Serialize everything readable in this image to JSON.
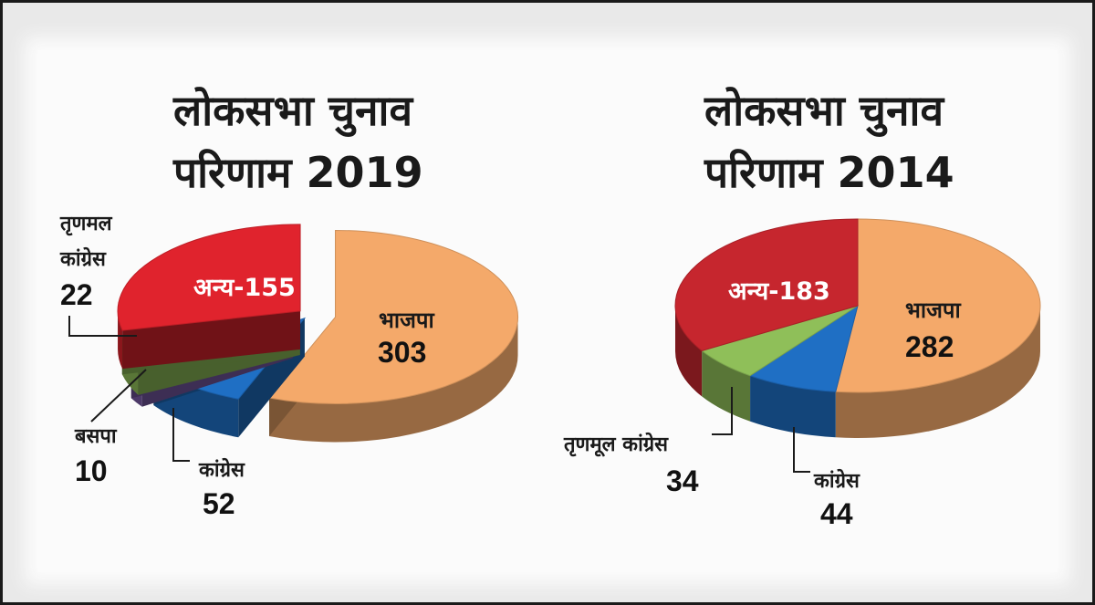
{
  "colors": {
    "bjp": "#f4a96a",
    "congress": "#1f6fc4",
    "others_2019": "#e0232d",
    "others_2014": "#c6262e",
    "tmc": "#8fbf59",
    "bsp": "#7a5ca8",
    "frame_bg": "#e9e9e9",
    "panel_bg": "#fbfbfb"
  },
  "chart_data": [
    {
      "type": "pie",
      "title": "लोकसभा चुनाव परिणाम 2019",
      "title_lines": [
        "लोकसभा चुनाव",
        "परिणाम 2019"
      ],
      "slices": [
        {
          "label": "भाजपा",
          "value": 303,
          "color": "#f4a96a"
        },
        {
          "label": "कांग्रेस",
          "value": 52,
          "color": "#1f6fc4"
        },
        {
          "label": "बसपा",
          "value": 10,
          "color": "#7a5ca8"
        },
        {
          "label": "तृणमल कांग्रेस",
          "value": 22,
          "color": "#8fbf59"
        },
        {
          "label": "अन्य",
          "value": 155,
          "color": "#e0232d"
        }
      ],
      "labels": {
        "bjp_name": "भाजपा",
        "bjp_value": "303",
        "others_text": "अन्य-155",
        "congress_name": "कांग्रेस",
        "congress_value": "52",
        "bsp_name": "बसपा",
        "bsp_value": "10",
        "tmc_line1": "तृणमल",
        "tmc_line2": "कांग्रेस",
        "tmc_value": "22"
      }
    },
    {
      "type": "pie",
      "title": "लोकसभा चुनाव परिणाम 2014",
      "title_lines": [
        "लोकसभा चुनाव",
        "परिणाम 2014"
      ],
      "slices": [
        {
          "label": "भाजपा",
          "value": 282,
          "color": "#f4a96a"
        },
        {
          "label": "कांग्रेस",
          "value": 44,
          "color": "#1f6fc4"
        },
        {
          "label": "तृणमूल कांग्रेस",
          "value": 34,
          "color": "#8fbf59"
        },
        {
          "label": "अन्य",
          "value": 183,
          "color": "#c6262e"
        }
      ],
      "labels": {
        "bjp_name": "भाजपा",
        "bjp_value": "282",
        "others_text": "अन्य-183",
        "congress_name": "कांग्रेस",
        "congress_value": "44",
        "tmc_name": "तृणमूल कांग्रेस",
        "tmc_value": "34"
      }
    }
  ]
}
